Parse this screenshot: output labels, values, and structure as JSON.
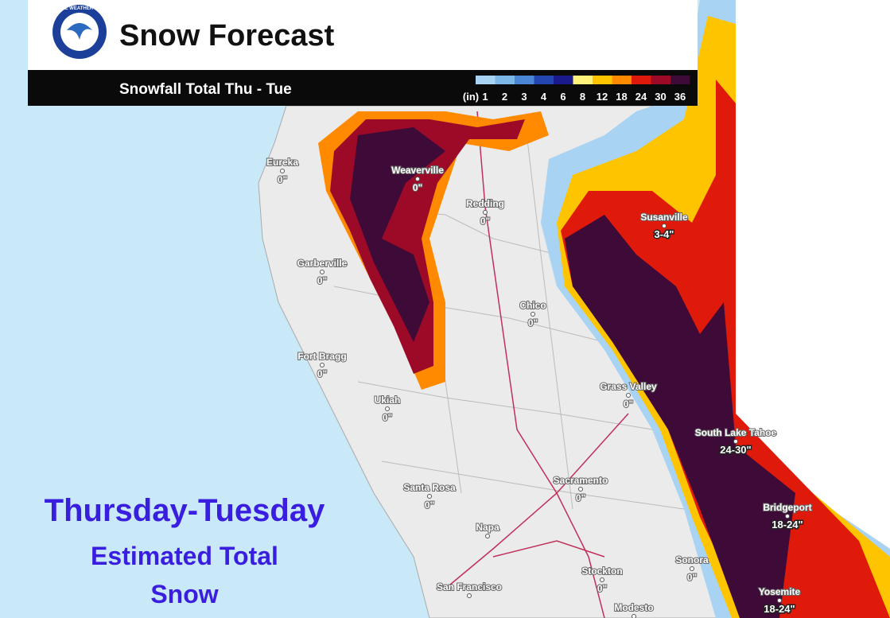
{
  "logo": {
    "text": "NATIONAL WEATHER SERVICE"
  },
  "header": {
    "title": "Snow Forecast",
    "subtitle": "Snowfall Total Thu - Tue"
  },
  "legend": {
    "unit": "(in)",
    "items": [
      {
        "value": 1,
        "color": "#a9d3f2"
      },
      {
        "value": 2,
        "color": "#7db7e8"
      },
      {
        "value": 3,
        "color": "#4a86d4"
      },
      {
        "value": 4,
        "color": "#2446b0"
      },
      {
        "value": 6,
        "color": "#1a1a8c"
      },
      {
        "value": 8,
        "color": "#fff27a"
      },
      {
        "value": 12,
        "color": "#ffc400"
      },
      {
        "value": 18,
        "color": "#ff8a00"
      },
      {
        "value": 24,
        "color": "#e01a0a"
      },
      {
        "value": 30,
        "color": "#9c0a28"
      },
      {
        "value": 36,
        "color": "#3e0a38"
      }
    ]
  },
  "cities": [
    {
      "name": "Eureka",
      "amount": "0\""
    },
    {
      "name": "Weaverville",
      "amount": "0\""
    },
    {
      "name": "Redding",
      "amount": "0\""
    },
    {
      "name": "Susanville",
      "amount": "3-4\""
    },
    {
      "name": "Garberville",
      "amount": "0\""
    },
    {
      "name": "Chico",
      "amount": "0\""
    },
    {
      "name": "Fort Bragg",
      "amount": "0\""
    },
    {
      "name": "Grass Valley",
      "amount": "0\""
    },
    {
      "name": "Ukiah",
      "amount": "0\""
    },
    {
      "name": "South Lake Tahoe",
      "amount": "24-30\""
    },
    {
      "name": "Sacramento",
      "amount": "0\""
    },
    {
      "name": "Santa Rosa",
      "amount": "0\""
    },
    {
      "name": "Bridgeport",
      "amount": "18-24\""
    },
    {
      "name": "Napa"
    },
    {
      "name": "Sonora",
      "amount": "0\""
    },
    {
      "name": "Stockton",
      "amount": "0\""
    },
    {
      "name": "San Francisco"
    },
    {
      "name": "Yosemite",
      "amount": "18-24\""
    },
    {
      "name": "Modesto"
    }
  ],
  "caption": {
    "line1": "Thursday-Tuesday",
    "line2": "Estimated Total",
    "line3": "Snow"
  }
}
